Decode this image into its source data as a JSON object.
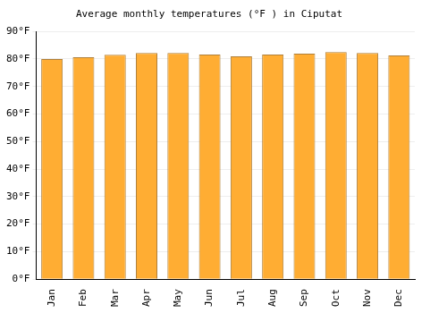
{
  "chart_data": {
    "type": "bar",
    "title": "Average monthly temperatures (°F ) in Ciputat",
    "categories": [
      "Jan",
      "Feb",
      "Mar",
      "Apr",
      "May",
      "Jun",
      "Jul",
      "Aug",
      "Sep",
      "Oct",
      "Nov",
      "Dec"
    ],
    "values": [
      80.0,
      80.6,
      81.5,
      82.2,
      82.2,
      81.6,
      81.0,
      81.6,
      81.9,
      82.5,
      82.2,
      81.3
    ],
    "color": "#ffad33",
    "ylim": [
      0,
      90
    ],
    "yticks": [
      {
        "value": 0,
        "label": "0°F"
      },
      {
        "value": 10,
        "label": "10°F"
      },
      {
        "value": 20,
        "label": "20°F"
      },
      {
        "value": 30,
        "label": "30°F"
      },
      {
        "value": 40,
        "label": "40°F"
      },
      {
        "value": 50,
        "label": "50°F"
      },
      {
        "value": 60,
        "label": "60°F"
      },
      {
        "value": 70,
        "label": "70°F"
      },
      {
        "value": 80,
        "label": "80°F"
      },
      {
        "value": 90,
        "label": "90°F"
      }
    ],
    "grid": true
  }
}
